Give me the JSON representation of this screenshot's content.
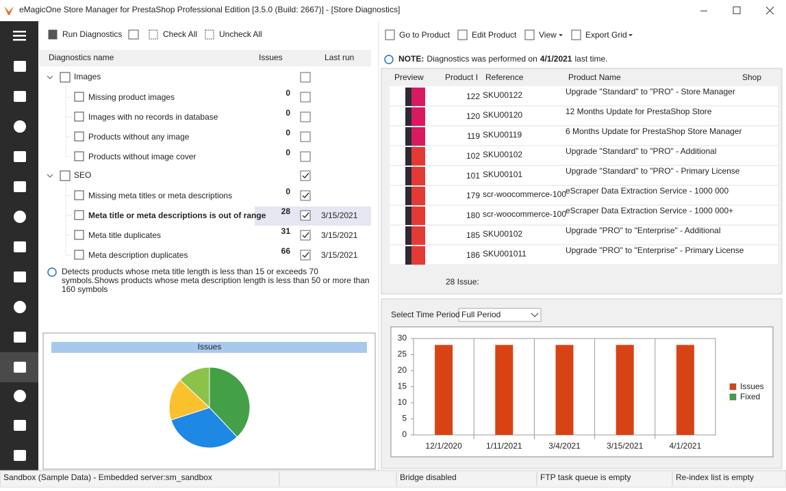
{
  "window": {
    "title": "eMagicOne Store Manager for PrestaShop Professional Edition [3.5.0 (Build: 2667)] - [Store Diagnostics]"
  },
  "left_toolbar": [
    "Run Diagnostics",
    "Check All",
    "Uncheck All"
  ],
  "tree": {
    "columns": [
      "Diagnostics name",
      "Issues",
      "Last run"
    ],
    "groups": [
      {
        "label": "Images",
        "checked": false,
        "items": [
          {
            "label": "Missing product images",
            "issues": 0,
            "checked": false
          },
          {
            "label": "Images with no records in database",
            "issues": 0,
            "checked": false
          },
          {
            "label": "Products without any image",
            "issues": 0,
            "checked": false
          },
          {
            "label": "Products without image cover",
            "issues": 0,
            "checked": false
          }
        ]
      },
      {
        "label": "SEO",
        "checked": true,
        "items": [
          {
            "label": "Missing meta titles or meta descriptions",
            "issues": 0,
            "checked": true
          },
          {
            "label": "Meta title or meta descriptions is out of range",
            "issues": 28,
            "checked": true,
            "last_run": "3/15/2021",
            "selected": true
          },
          {
            "label": "Meta title duplicates",
            "issues": 31,
            "checked": true,
            "last_run": "3/15/2021"
          },
          {
            "label": "Meta description duplicates",
            "issues": 66,
            "checked": true,
            "last_run": "3/15/2021"
          }
        ]
      }
    ]
  },
  "info": "Detects products whose meta title length is less than 15 or exceeds 70 symbols.Shows products whose meta description length is less than 50 or more than 160 symbols",
  "pie_chart": {
    "type": "pie",
    "title": "Issues",
    "values": [
      38,
      32,
      17,
      13
    ],
    "colors": [
      "#43a047",
      "#1e88e5",
      "#fbc02d",
      "#8bc34a"
    ]
  },
  "right_toolbar": [
    "Go to Product",
    "Edit Product",
    "View",
    "Export Grid"
  ],
  "note": [
    "NOTE:",
    "Diagnostics was performed on",
    "4/1/2021",
    "last time."
  ],
  "grid": {
    "columns": [
      "Preview",
      "Product I",
      "Reference",
      "Product Name",
      "Shop"
    ],
    "rows": [
      {
        "product_id": 122,
        "reference": "SKU00122",
        "product_name": "Upgrade \"Standard\" to \"PRO\" - Store Manager"
      },
      {
        "product_id": 120,
        "reference": "SKU00120",
        "product_name": "12 Months Update for PrestaShop Store"
      },
      {
        "product_id": 119,
        "reference": "SKU00119",
        "product_name": "6 Months Update for PrestaShop Store Manager"
      },
      {
        "product_id": 102,
        "reference": "SKU00102",
        "product_name": "Upgrade \"Standard\" to \"PRO\" - Additional"
      },
      {
        "product_id": 101,
        "reference": "SKU00101",
        "product_name": "Upgrade \"Standard\" to \"PRO\" - Primary License"
      },
      {
        "product_id": 179,
        "reference": "scr-woocommerce-100",
        "product_name": "eScraper Data Extraction Service - 1000 000"
      },
      {
        "product_id": 180,
        "reference": "scr-woocommerce-100",
        "product_name": "eScraper Data Extraction Service - 1000 000+"
      },
      {
        "product_id": 185,
        "reference": "SKU00102",
        "product_name": "Upgrade \"PRO\" to \"Enterprise\" - Additional"
      },
      {
        "product_id": 186,
        "reference": "SKU001011",
        "product_name": "Upgrade \"PRO\" to \"Enterprise\" - Primary License"
      }
    ],
    "footer": "28 Issue:"
  },
  "time_period": {
    "label": "Select Time Period",
    "selected": "Full Period"
  },
  "bar_chart": {
    "type": "bar",
    "categories": [
      "12/1/2020",
      "1/11/2021",
      "3/4/2021",
      "3/15/2021",
      "4/1/2021"
    ],
    "series": [
      {
        "name": "Issues",
        "color": "#d84315",
        "values": [
          28,
          28,
          28,
          28,
          28
        ]
      },
      {
        "name": "Fixed",
        "color": "#43a047",
        "values": [
          0,
          0,
          0,
          0,
          0
        ]
      }
    ],
    "ylim": [
      0,
      30
    ],
    "yticks": [
      0,
      5,
      10,
      15,
      20,
      25,
      30
    ]
  },
  "status": [
    "Sandbox (Sample Data) - Embedded server:sm_sandbox",
    "Bridge disabled",
    "FTP task queue is empty",
    "Re-index list is empty"
  ]
}
